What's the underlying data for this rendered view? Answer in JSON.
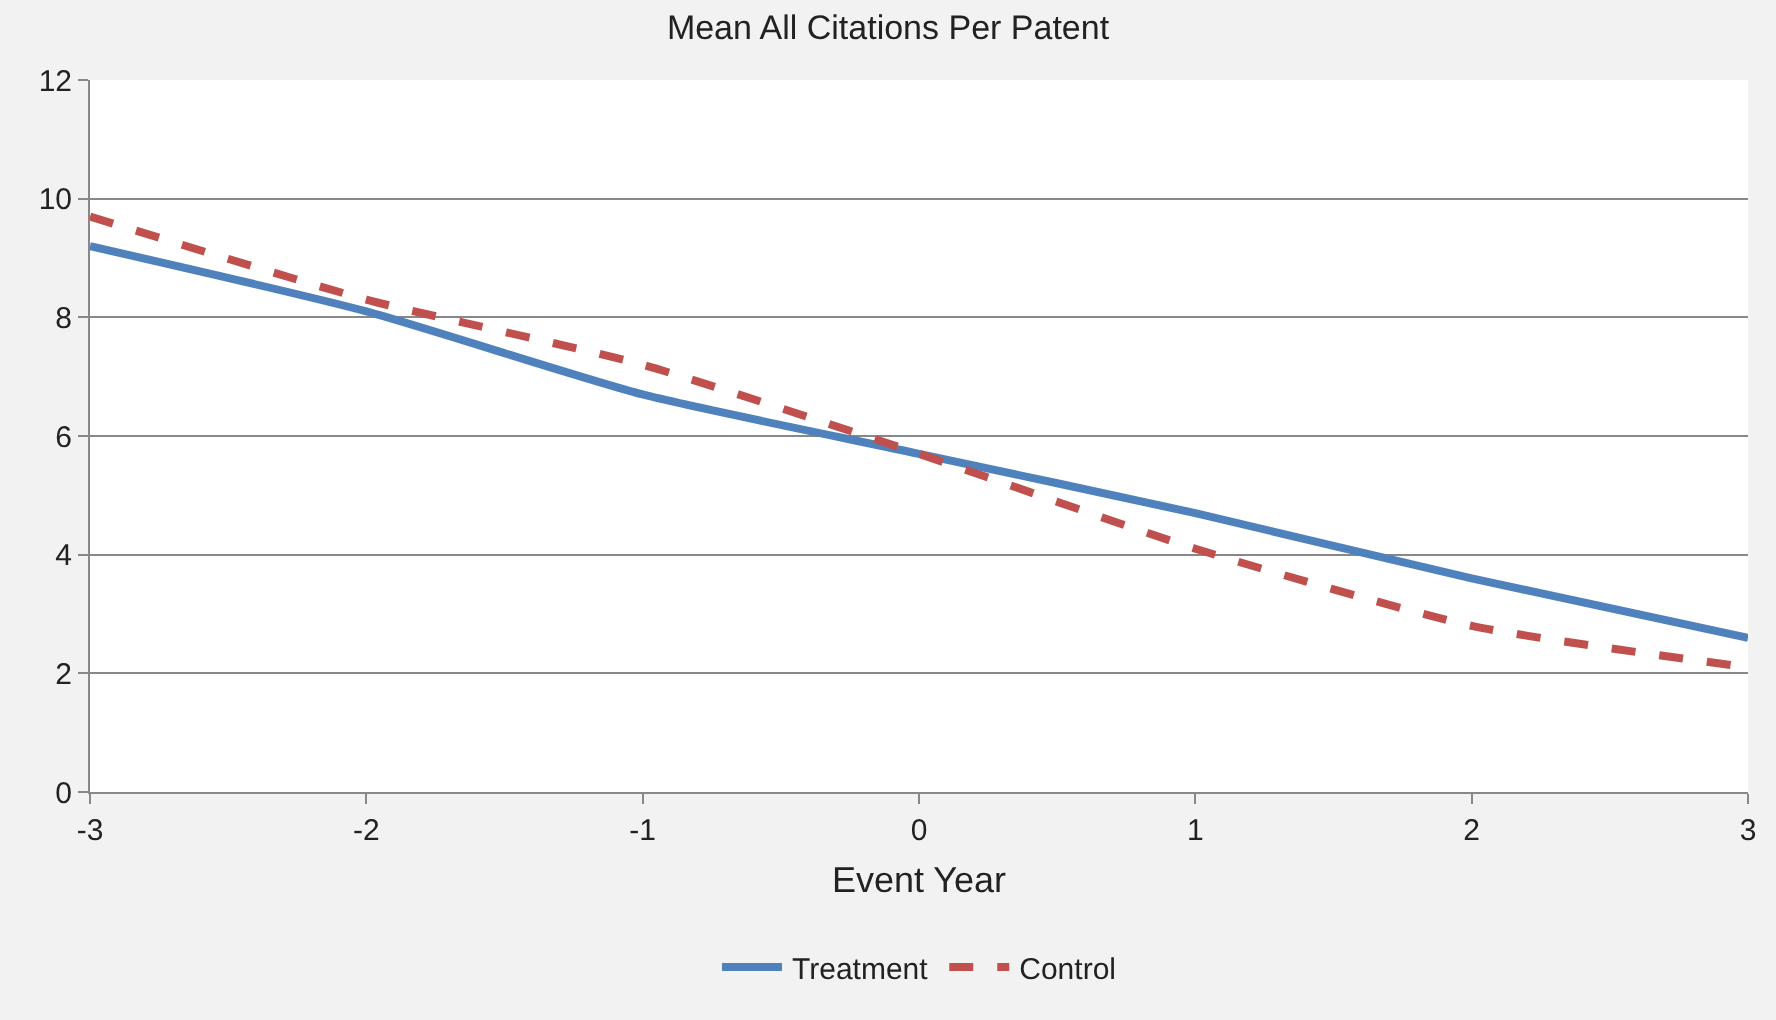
{
  "chart_data": {
    "type": "line",
    "title": "Mean All Citations Per Patent",
    "xlabel": "Event Year",
    "x": [
      -3,
      -2,
      -1,
      0,
      1,
      2,
      3
    ],
    "series": [
      {
        "name": "Treatment",
        "color": "#4f81bd",
        "line_style": "solid",
        "values": [
          9.2,
          8.1,
          6.7,
          5.7,
          4.7,
          3.6,
          2.6
        ]
      },
      {
        "name": "Control",
        "color": "#c0504d",
        "line_style": "dashed",
        "values": [
          9.7,
          8.3,
          7.2,
          5.7,
          4.1,
          2.8,
          2.1
        ]
      }
    ],
    "xlim": [
      -3,
      3
    ],
    "xticks": [
      -3,
      -2,
      -1,
      0,
      1,
      2,
      3
    ],
    "ylim": [
      0,
      12
    ],
    "yticks": [
      0,
      2,
      4,
      6,
      8,
      10,
      12
    ],
    "grid": "y",
    "legend": "bottom",
    "marker": "none"
  }
}
